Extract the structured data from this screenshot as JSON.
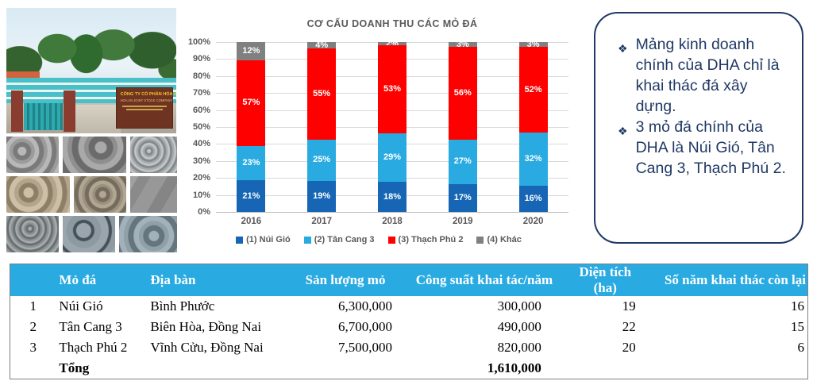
{
  "photos": {
    "company_sign_line1": "CÔNG TY CỔ PHẦN HÓA AN",
    "company_sign_line2": "HOA AN JOINT STOCK COMPANY"
  },
  "chart_data": [
    {
      "type": "bar",
      "stacked": true,
      "title": "CƠ CẤU DOANH THU CÁC MỎ ĐÁ",
      "categories": [
        "2016",
        "2017",
        "2018",
        "2019",
        "2020"
      ],
      "series": [
        {
          "name": "(1) Núi Gió",
          "color": "#1766B5",
          "values": [
            21,
            19,
            18,
            17,
            16
          ]
        },
        {
          "name": "(2) Tân Cang 3",
          "color": "#29ABE2",
          "values": [
            23,
            25,
            29,
            27,
            32
          ]
        },
        {
          "name": "(3) Thạch Phú 2",
          "color": "#FF0000",
          "values": [
            57,
            55,
            53,
            56,
            52
          ]
        },
        {
          "name": "(4) Khác",
          "color": "#808080",
          "values": [
            12,
            4,
            2,
            3,
            3
          ]
        }
      ],
      "unit": "%",
      "ylim": [
        0,
        100
      ],
      "yticks": [
        "100%",
        "90%",
        "80%",
        "70%",
        "60%",
        "50%",
        "40%",
        "30%",
        "20%",
        "10%",
        "0%"
      ],
      "grid": true,
      "legend_position": "bottom"
    },
    {
      "type": "table",
      "headers": [
        "",
        "Mỏ đá",
        "Địa bàn",
        "Sản lượng mỏ",
        "Công suất khai tác/năm",
        "Diện tích (ha)",
        "Số năm khai thác còn lại"
      ],
      "rows": [
        [
          "1",
          "Núi Gió",
          "Bình Phước",
          "6,300,000",
          "300,000",
          "19",
          "16"
        ],
        [
          "2",
          "Tân Cang 3",
          "Biên Hòa, Đồng Nai",
          "6,700,000",
          "490,000",
          "22",
          "15"
        ],
        [
          "3",
          "Thạch Phú 2",
          "Vĩnh Cửu, Đồng Nai",
          "7,500,000",
          "820,000",
          "20",
          "6"
        ],
        [
          "",
          "Tổng",
          "",
          "",
          "1,610,000",
          "",
          ""
        ]
      ]
    }
  ],
  "callout": {
    "bullet_icon": "❖",
    "bullets": [
      "Mảng kinh doanh chính của DHA chỉ là khai thác đá xây dựng.",
      "3 mỏ đá chính của DHA là Núi Gió, Tân Cang 3, Thạch Phú 2."
    ]
  },
  "colors": {
    "table_header_bg": "#29ABE2",
    "callout_border": "#1F3864",
    "axis_text": "#595959",
    "gridline": "#D9D9D9"
  }
}
